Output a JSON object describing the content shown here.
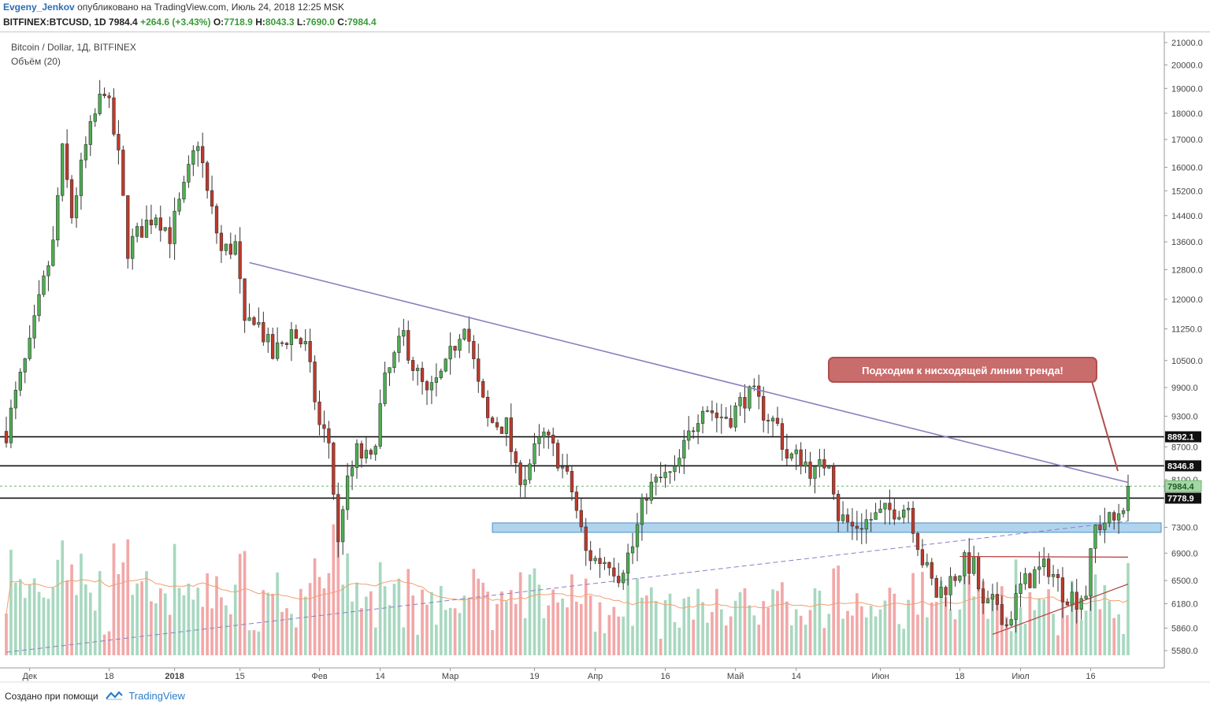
{
  "header": {
    "author": "Evgeny_Jenkov",
    "published": "опубликовано на TradingView.com, Июль 24, 2018 12:25 MSK",
    "symbol_line": "BITFINEX:BTCUSD, 1D",
    "last": "7984.4",
    "change": "+264.6 (+3.43%)",
    "o_label": "O:",
    "o": "7718.9",
    "h_label": "H:",
    "h": "8043.3",
    "l_label": "L:",
    "l": "7690.0",
    "c_label": "C:",
    "c": "7984.4"
  },
  "chart_title": "Bitcoin / Dollar, 1Д, BITFINEX",
  "volume_title": "Объём (20)",
  "annotation": "Подходим к нисходящей линии тренда!",
  "footer": {
    "created": "Создано при помощи",
    "brand": "TradingView"
  },
  "colors": {
    "up": "#4caf50",
    "down": "#c0392b",
    "vol_up": "#a8d8c0",
    "vol_down": "#f2a8a8",
    "trendline": "#8a7fc0",
    "zone": "#6fb0e0",
    "annotation": "#c96c6c"
  },
  "chart_data": {
    "type": "candlestick",
    "symbol": "BITFINEX:BTCUSD",
    "interval": "1D",
    "y_ticks": [
      21000,
      20000,
      19000,
      18000,
      17000,
      16000,
      15200,
      14400,
      13600,
      12800,
      12000,
      11250,
      10500,
      9900,
      9300,
      8700,
      8100,
      7300,
      6900,
      6500,
      6180,
      5860,
      5580
    ],
    "y_tick_labels": [
      "21000.0",
      "20000.0",
      "19000.0",
      "18000.0",
      "17000.0",
      "16000.0",
      "15200.0",
      "14400.0",
      "13600.0",
      "12800.0",
      "12000.0",
      "11250.0",
      "10500.0",
      "9900.0",
      "9300.0",
      "8700.0",
      "8100.0",
      "7300.0",
      "6900.0",
      "6500.0",
      "6180.0",
      "5860.0",
      "5580.0"
    ],
    "x_labels": [
      "Дек",
      "18",
      "2018",
      "15",
      "Фев",
      "14",
      "Мар",
      "19",
      "Апр",
      "16",
      "Май",
      "14",
      "Июн",
      "18",
      "Июл",
      "16"
    ],
    "levels": [
      {
        "label": "8892.1",
        "value": 8892.1
      },
      {
        "label": "8346.8",
        "value": 8346.8
      },
      {
        "label": "7778.9",
        "value": 7778.9
      }
    ],
    "last_price": {
      "label": "7984.4",
      "value": 7984.4
    },
    "support_zone": [
      7220,
      7370
    ],
    "descending_trendline": [
      [
        "2018-01-17",
        13000
      ],
      [
        "2018-07-24",
        8050
      ]
    ],
    "rising_dashed_trendline": [
      [
        "2017-11-26",
        5560
      ],
      [
        "2018-07-24",
        7400
      ]
    ],
    "triangle_upper": [
      [
        "2018-06-18",
        6850
      ],
      [
        "2018-07-24",
        6840
      ]
    ],
    "triangle_lower": [
      [
        "2018-06-25",
        5780
      ],
      [
        "2018-07-24",
        6450
      ]
    ],
    "close_path": [
      [
        "2017-11-26",
        9000
      ],
      [
        "2017-12-01",
        10800
      ],
      [
        "2017-12-06",
        13500
      ],
      [
        "2017-12-08",
        16500
      ],
      [
        "2017-12-10",
        14400
      ],
      [
        "2017-12-13",
        16700
      ],
      [
        "2017-12-17",
        19100
      ],
      [
        "2017-12-20",
        16300
      ],
      [
        "2017-12-22",
        13400
      ],
      [
        "2017-12-25",
        14000
      ],
      [
        "2017-12-28",
        14500
      ],
      [
        "2017-12-31",
        13800
      ],
      [
        "2018-01-03",
        15200
      ],
      [
        "2018-01-06",
        17000
      ],
      [
        "2018-01-08",
        15100
      ],
      [
        "2018-01-11",
        13300
      ],
      [
        "2018-01-14",
        13500
      ],
      [
        "2018-01-16",
        11200
      ],
      [
        "2018-01-18",
        11600
      ],
      [
        "2018-01-22",
        10600
      ],
      [
        "2018-01-26",
        11200
      ],
      [
        "2018-01-29",
        10800
      ],
      [
        "2018-02-01",
        9100
      ],
      [
        "2018-02-03",
        8800
      ],
      [
        "2018-02-05",
        7000
      ],
      [
        "2018-02-06",
        7700
      ],
      [
        "2018-02-09",
        8600
      ],
      [
        "2018-02-12",
        8400
      ],
      [
        "2018-02-15",
        10000
      ],
      [
        "2018-02-19",
        11100
      ],
      [
        "2018-02-21",
        10400
      ],
      [
        "2018-02-24",
        9700
      ],
      [
        "2018-02-28",
        10300
      ],
      [
        "2018-03-04",
        11500
      ],
      [
        "2018-03-07",
        9900
      ],
      [
        "2018-03-09",
        9200
      ],
      [
        "2018-03-13",
        9100
      ],
      [
        "2018-03-15",
        8200
      ],
      [
        "2018-03-17",
        8200
      ],
      [
        "2018-03-19",
        8600
      ],
      [
        "2018-03-21",
        8900
      ],
      [
        "2018-03-24",
        8500
      ],
      [
        "2018-03-27",
        7900
      ],
      [
        "2018-03-30",
        6900
      ],
      [
        "2018-04-01",
        6800
      ],
      [
        "2018-04-04",
        6800
      ],
      [
        "2018-04-06",
        6600
      ],
      [
        "2018-04-09",
        7000
      ],
      [
        "2018-04-12",
        7900
      ],
      [
        "2018-04-15",
        8100
      ],
      [
        "2018-04-18",
        8200
      ],
      [
        "2018-04-21",
        8900
      ],
      [
        "2018-04-24",
        9600
      ],
      [
        "2018-04-27",
        9300
      ],
      [
        "2018-04-30",
        9300
      ],
      [
        "2018-05-03",
        9700
      ],
      [
        "2018-05-05",
        9700
      ],
      [
        "2018-05-07",
        9400
      ],
      [
        "2018-05-10",
        9100
      ],
      [
        "2018-05-12",
        8500
      ],
      [
        "2018-05-15",
        8500
      ],
      [
        "2018-05-18",
        8200
      ],
      [
        "2018-05-21",
        8500
      ],
      [
        "2018-05-23",
        7500
      ],
      [
        "2018-05-26",
        7300
      ],
      [
        "2018-05-29",
        7400
      ],
      [
        "2018-06-01",
        7500
      ],
      [
        "2018-06-04",
        7600
      ],
      [
        "2018-06-07",
        7650
      ],
      [
        "2018-06-10",
        6800
      ],
      [
        "2018-06-13",
        6300
      ],
      [
        "2018-06-16",
        6500
      ],
      [
        "2018-06-19",
        6750
      ],
      [
        "2018-06-21",
        6700
      ],
      [
        "2018-06-23",
        6100
      ],
      [
        "2018-06-26",
        6200
      ],
      [
        "2018-06-28",
        5900
      ],
      [
        "2018-07-01",
        6400
      ],
      [
        "2018-07-04",
        6600
      ],
      [
        "2018-07-07",
        6700
      ],
      [
        "2018-07-10",
        6350
      ],
      [
        "2018-07-13",
        6250
      ],
      [
        "2018-07-15",
        6350
      ],
      [
        "2018-07-17",
        7300
      ],
      [
        "2018-07-19",
        7400
      ],
      [
        "2018-07-21",
        7400
      ],
      [
        "2018-07-23",
        7720
      ],
      [
        "2018-07-24",
        7984
      ]
    ]
  }
}
